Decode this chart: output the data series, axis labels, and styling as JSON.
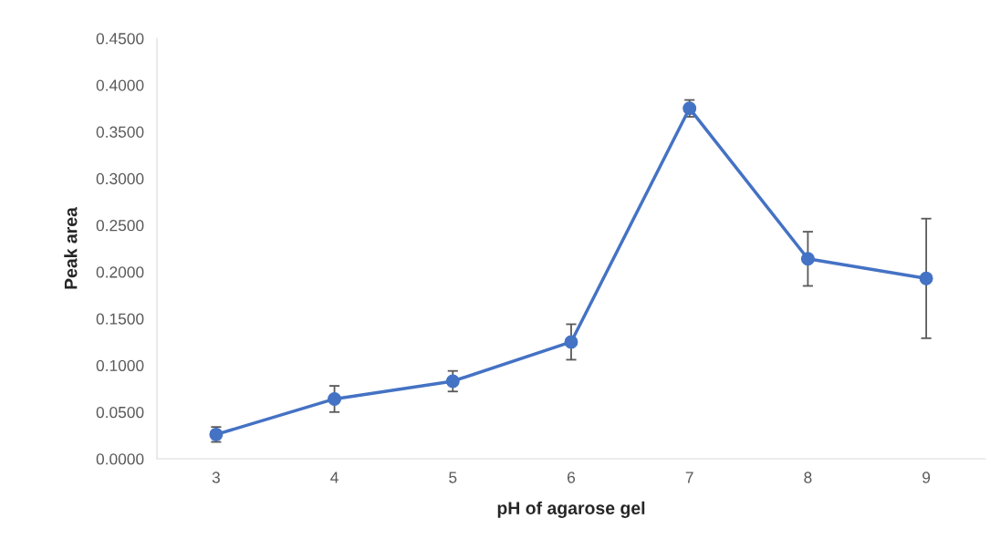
{
  "chart_data": {
    "type": "line",
    "xlabel": "pH of agarose gel",
    "ylabel": "Peak area",
    "categories": [
      "3",
      "4",
      "5",
      "6",
      "7",
      "8",
      "9"
    ],
    "series": [
      {
        "color": "#4472c4",
        "values": [
          0.026,
          0.064,
          0.083,
          0.125,
          0.375,
          0.214,
          0.193
        ],
        "errors": [
          0.008,
          0.014,
          0.011,
          0.019,
          0.009,
          0.029,
          0.064
        ]
      }
    ],
    "ylim": [
      0,
      0.45
    ],
    "yticks": [
      {
        "value": 0,
        "label": "0.0000"
      },
      {
        "value": 0.05,
        "label": "0.0500"
      },
      {
        "value": 0.1,
        "label": "0.1000"
      },
      {
        "value": 0.15,
        "label": "0.1500"
      },
      {
        "value": 0.2,
        "label": "0.2000"
      },
      {
        "value": 0.25,
        "label": "0.2500"
      },
      {
        "value": 0.3,
        "label": "0.3000"
      },
      {
        "value": 0.35,
        "label": "0.3500"
      },
      {
        "value": 0.4,
        "label": "0.4000"
      },
      {
        "value": 0.45,
        "label": "0.4500"
      }
    ],
    "marker": "circle",
    "line_style": "solid",
    "grid": false,
    "legend": false
  }
}
